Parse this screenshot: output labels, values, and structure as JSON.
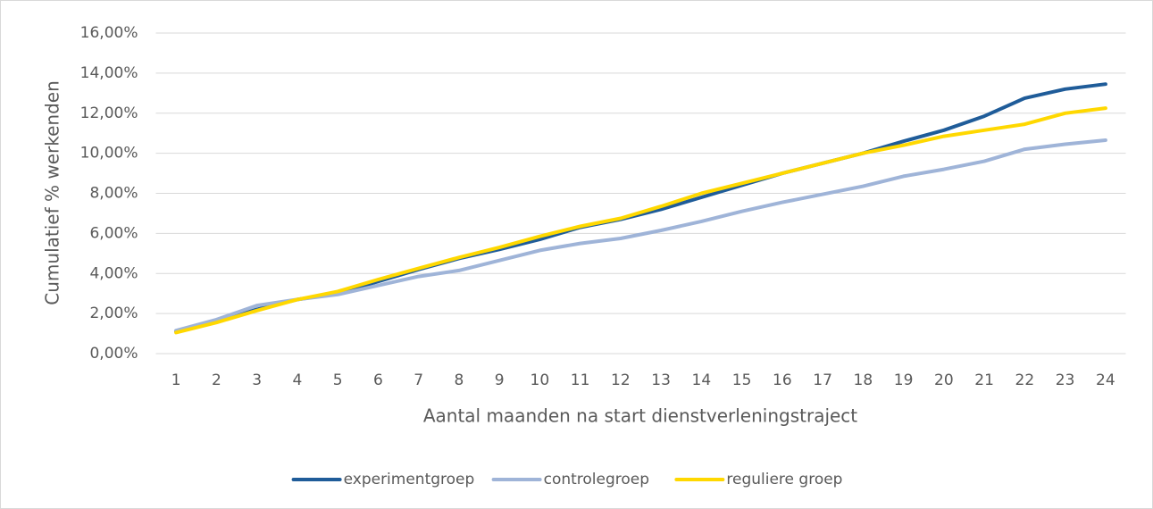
{
  "chart_data": {
    "type": "line",
    "xlabel": "Aantal maanden na start dienstverleningstraject",
    "ylabel": "Cumulatief % werkenden",
    "categories": [
      "1",
      "2",
      "3",
      "4",
      "5",
      "6",
      "7",
      "8",
      "9",
      "10",
      "11",
      "12",
      "13",
      "14",
      "15",
      "16",
      "17",
      "18",
      "19",
      "20",
      "21",
      "22",
      "23",
      "24"
    ],
    "series": [
      {
        "name": "experimentgroep",
        "color": "#1f5c99",
        "values": [
          1.1,
          1.6,
          2.2,
          2.7,
          3.0,
          3.6,
          4.2,
          4.75,
          5.2,
          5.7,
          6.3,
          6.7,
          7.2,
          7.8,
          8.4,
          9.0,
          9.5,
          10.0,
          10.6,
          11.15,
          11.85,
          12.75,
          13.2,
          13.45
        ]
      },
      {
        "name": "controlegroep",
        "color": "#9fb4d8",
        "values": [
          1.15,
          1.7,
          2.4,
          2.7,
          2.95,
          3.4,
          3.85,
          4.15,
          4.65,
          5.15,
          5.5,
          5.75,
          6.15,
          6.6,
          7.1,
          7.55,
          7.95,
          8.35,
          8.85,
          9.2,
          9.6,
          10.2,
          10.45,
          10.65
        ]
      },
      {
        "name": "reguliere groep",
        "color": "#ffd800",
        "values": [
          1.05,
          1.55,
          2.15,
          2.7,
          3.1,
          3.7,
          4.25,
          4.8,
          5.3,
          5.85,
          6.35,
          6.75,
          7.35,
          8.0,
          8.5,
          9.0,
          9.5,
          10.0,
          10.4,
          10.85,
          11.15,
          11.45,
          12.0,
          12.25
        ]
      }
    ],
    "ylim": [
      0,
      16
    ],
    "yticks": [
      {
        "value": 0,
        "label": "0,00%"
      },
      {
        "value": 2,
        "label": "2,00%"
      },
      {
        "value": 4,
        "label": "4,00%"
      },
      {
        "value": 6,
        "label": "6,00%"
      },
      {
        "value": 8,
        "label": "8,00%"
      },
      {
        "value": 10,
        "label": "10,00%"
      },
      {
        "value": 12,
        "label": "12,00%"
      },
      {
        "value": 14,
        "label": "14,00%"
      },
      {
        "value": 16,
        "label": "16,00%"
      }
    ],
    "grid": true,
    "legend": "bottom"
  }
}
